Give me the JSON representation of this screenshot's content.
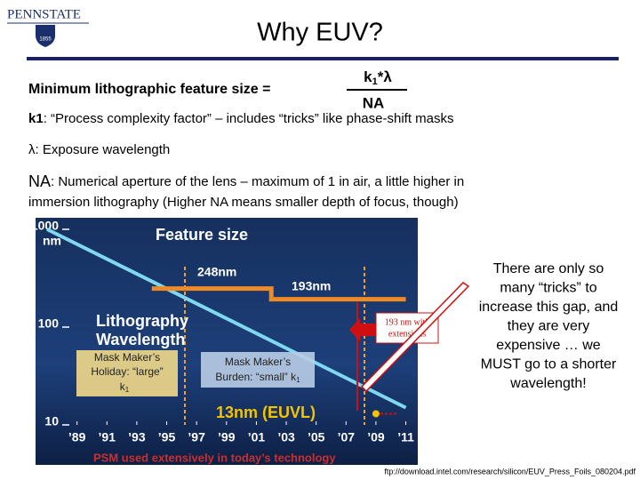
{
  "header": {
    "logo": "PENNSTATE",
    "logo_year": "1855",
    "title": "Why EUV?"
  },
  "formula": {
    "label": "Minimum lithographic feature size =",
    "numerator": "k",
    "numerator_sub": "1",
    "numerator_rest": "*λ",
    "denominator": "NA"
  },
  "bullets": [
    {
      "term": "k1",
      "lines": [
        ": “Process complexity factor” – includes “tricks” like phase-shift masks"
      ]
    },
    {
      "term": "λ",
      "lines": [
        ": Exposure wavelength"
      ]
    },
    {
      "term": "NA",
      "lines": [
        ": Numerical aperture of the lens – maximum of 1 in air, a little higher in",
        "immersion lithography (Higher NA means smaller depth of focus, though)"
      ]
    }
  ],
  "figure": {
    "type": "line",
    "log_y": true,
    "xlim": [
      1986.7,
      2011.8
    ],
    "ylim": [
      10,
      1000
    ],
    "xticks": [
      {
        "value": 1989,
        "label": "’89"
      },
      {
        "value": 1991,
        "label": "’91"
      },
      {
        "value": 1993,
        "label": "’93"
      },
      {
        "value": 1995,
        "label": "’95"
      },
      {
        "value": 1997,
        "label": "’97"
      },
      {
        "value": 1999,
        "label": "’99"
      },
      {
        "value": 2001,
        "label": "’01"
      },
      {
        "value": 2003,
        "label": "’03"
      },
      {
        "value": 2005,
        "label": "’05"
      },
      {
        "value": 2007,
        "label": "’07"
      },
      {
        "value": 2009,
        "label": "’09"
      },
      {
        "value": 2011,
        "label": "’11"
      }
    ],
    "yticks": [
      1000,
      100,
      10
    ],
    "y_unit": "nm",
    "series": [
      {
        "name": "Feature size",
        "color": "#7fd8f0",
        "x": [
          1987,
          2011
        ],
        "values": [
          1000,
          15
        ]
      },
      {
        "name": "Lithography Wavelength",
        "color": "#f08a24",
        "x": [
          1994,
          2002,
          2002,
          2011
        ],
        "values": [
          248,
          248,
          193,
          193
        ]
      }
    ],
    "euvl": {
      "x": 2009,
      "value": 13,
      "label": "13nm (EUVL)",
      "color": "#f5c400"
    },
    "level_labels": [
      "248nm",
      "193nm"
    ],
    "wavelength_label": [
      "Lithography",
      "Wavelength"
    ],
    "holiday": [
      "Mask Maker’s",
      "Holiday: “large”",
      "k",
      "1"
    ],
    "burden": [
      "Mask Maker’s",
      "Burden: “small” k",
      "1"
    ],
    "extensions": [
      "193 nm with",
      "extensions"
    ],
    "psm": "PSM used extensively in today’s technology"
  },
  "side_note": [
    "There are only so",
    "many “tricks” to",
    "increase this gap, and",
    "they are very",
    "expensive … we",
    "MUST go to a shorter",
    "wavelength!"
  ],
  "source": "ftp://download.intel.com/research/silicon/EUV_Press_Foils_080204.pdf"
}
